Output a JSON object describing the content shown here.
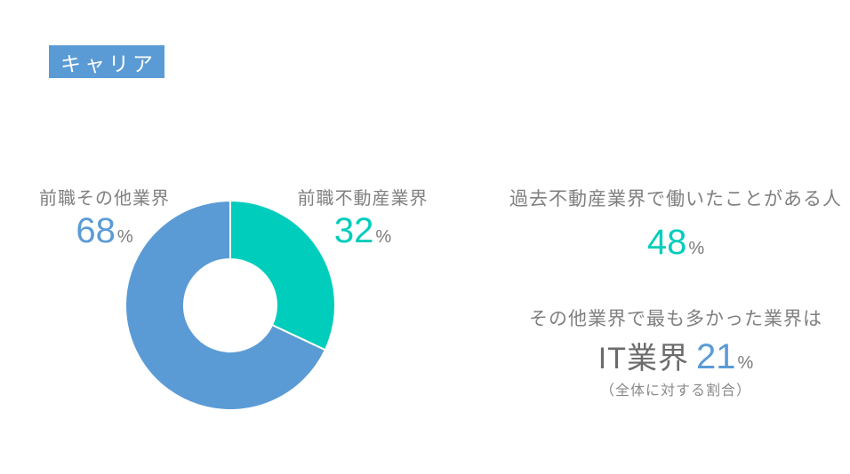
{
  "slide": {
    "title_badge": "キャリア",
    "background": "#ffffff"
  },
  "colors": {
    "accent_blue": "#5B9BD5",
    "accent_teal": "#00CDBC",
    "label_gray": "#808080",
    "dark_gray": "#6B6B6B",
    "badge_text": "#ffffff"
  },
  "chart_data": {
    "type": "pie",
    "subtype": "donut",
    "title": "キャリア",
    "categories": [
      "前職不動産業界",
      "前職その他業界"
    ],
    "values": [
      32,
      68
    ],
    "unit": "%",
    "colors": [
      "#00CDBC",
      "#5B9BD5"
    ],
    "start_angle_deg": 0,
    "direction": "clockwise",
    "inner_radius_ratio": 0.44,
    "legend": "none",
    "labels_position": "outside-top"
  },
  "donut_labels": {
    "other": {
      "label": "前職その他業界",
      "value": "68",
      "unit": "%"
    },
    "real_estate": {
      "label": "前職不動産業界",
      "value": "32",
      "unit": "%"
    }
  },
  "stats": {
    "past_experience": {
      "label": "過去不動産業界で働いたことがある人",
      "value": "48",
      "unit": "%"
    },
    "top_other_industry": {
      "intro": "その他業界で最も多かった業界は",
      "name": "IT業界",
      "value": "21",
      "unit": "%",
      "note": "（全体に対する割合）"
    }
  }
}
